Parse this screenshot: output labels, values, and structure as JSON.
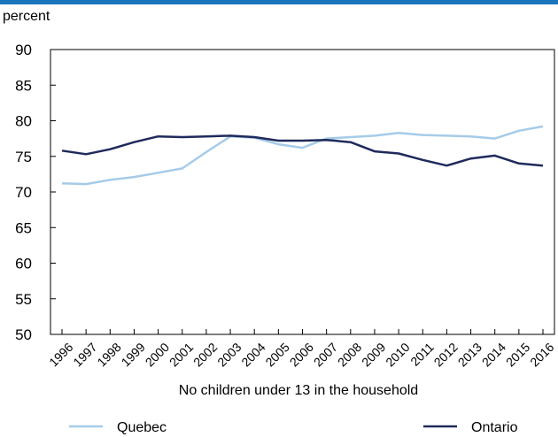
{
  "chart_data": {
    "type": "line",
    "ylabel": "percent",
    "xlabel": "No children under 13 in the household",
    "x": [
      "1996",
      "1997",
      "1998",
      "1999",
      "2000",
      "2001",
      "2002",
      "2003",
      "2004",
      "2005",
      "2006",
      "2007",
      "2008",
      "2009",
      "2010",
      "2011",
      "2012",
      "2013",
      "2014",
      "2015",
      "2016"
    ],
    "ylim": [
      50,
      90
    ],
    "yticks": [
      50,
      55,
      60,
      65,
      70,
      75,
      80,
      85,
      90
    ],
    "grid": false,
    "legend_position": "bottom",
    "series": [
      {
        "name": "Quebec",
        "color": "#a6cbe8",
        "values": [
          71.2,
          71.1,
          71.7,
          72.1,
          72.7,
          73.3,
          75.6,
          77.8,
          77.6,
          76.7,
          76.2,
          77.5,
          77.7,
          77.9,
          78.3,
          78.0,
          77.9,
          77.8,
          77.5,
          78.6,
          79.2
        ]
      },
      {
        "name": "Ontario",
        "color": "#1f2a5c",
        "values": [
          75.8,
          75.3,
          76.0,
          77.0,
          77.8,
          77.7,
          77.8,
          77.9,
          77.7,
          77.2,
          77.2,
          77.3,
          77.0,
          75.7,
          75.4,
          74.5,
          73.7,
          74.7,
          75.1,
          74.0,
          73.7
        ]
      }
    ]
  },
  "colors": {
    "top_rule": "#1b75bc",
    "axis": "#000000"
  }
}
